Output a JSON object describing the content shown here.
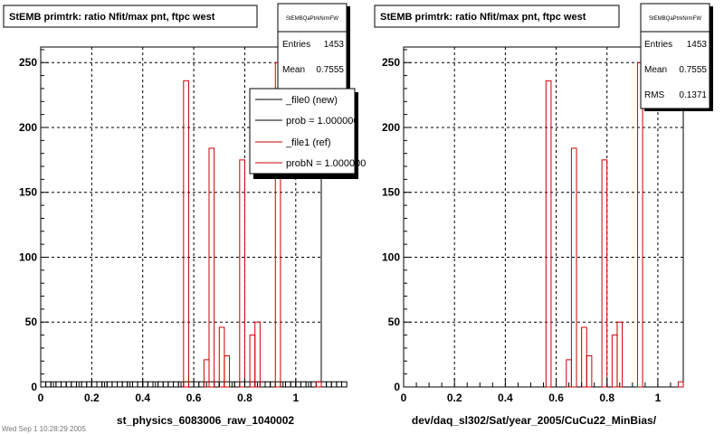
{
  "footer_text": "Wed Sep 1 10:28:29 2005",
  "colors": {
    "hist": "#cc0000",
    "grid": "#000000",
    "frame": "#000000",
    "shadow": "#000000"
  },
  "legend": {
    "entries": [
      {
        "label": "_file0 (new)",
        "color": "#000000"
      },
      {
        "label": "prob = 1.000000",
        "color": "#000000"
      },
      {
        "label": "_file1 (ref)",
        "color": "#cc0000"
      },
      {
        "label": "probN = 1.000000",
        "color": "#cc0000"
      }
    ]
  },
  "chart_data": [
    {
      "type": "bar",
      "title": "StEMB primtrk: ratio Nfit/max pnt, ftpc west",
      "xlabel": "st_physics_6083006_raw_1040002",
      "ylabel": "",
      "xlim": [
        0,
        1.1
      ],
      "ylim": [
        0,
        262
      ],
      "xticks": [
        "0",
        "0.2",
        "0.4",
        "0.6",
        "0.8",
        "1"
      ],
      "yticks": [
        "0",
        "50",
        "100",
        "150",
        "200",
        "250"
      ],
      "grid": true,
      "stats": {
        "name": "StEMBQaPtrkNrmFW",
        "rows": [
          {
            "label": "Entries",
            "value": "1453"
          },
          {
            "label": "Mean",
            "value": "0.7555"
          }
        ]
      },
      "bins": {
        "x0": 0.0,
        "width": 0.02
      },
      "series": [
        {
          "values": [
            4,
            4,
            4,
            4,
            4,
            4,
            4,
            4,
            4,
            4,
            4,
            4,
            4,
            4,
            4,
            4,
            4,
            4,
            4,
            4,
            4,
            4,
            4,
            4,
            4,
            4,
            4,
            4,
            4,
            4,
            4,
            4,
            4,
            4,
            4,
            4,
            4,
            4,
            4,
            4,
            4,
            4,
            4,
            4,
            4,
            4,
            4,
            4,
            4,
            4,
            4,
            4,
            4,
            4,
            4,
            4,
            4,
            4,
            4,
            4
          ]
        },
        {
          "values": [
            0,
            0,
            0,
            0,
            0,
            0,
            0,
            0,
            0,
            0,
            0,
            0,
            0,
            0,
            0,
            0,
            0,
            0,
            0,
            0,
            0,
            0,
            0,
            0,
            0,
            0,
            0,
            0,
            236,
            0,
            0,
            0,
            21,
            184,
            0,
            46,
            24,
            0,
            0,
            175,
            0,
            40,
            50,
            0,
            0,
            0,
            250,
            0,
            0,
            0,
            0,
            0,
            0,
            0,
            4,
            0,
            0,
            0,
            0,
            0
          ]
        }
      ]
    },
    {
      "type": "bar",
      "title": "StEMB primtrk: ratio Nfit/max pnt, ftpc west",
      "xlabel": "dev/daq_sl302/Sat/year_2005/CuCu22_MinBias/",
      "ylabel": "",
      "xlim": [
        0,
        1.1
      ],
      "ylim": [
        0,
        262
      ],
      "xticks": [
        "0",
        "0.2",
        "0.4",
        "0.6",
        "0.8",
        "1"
      ],
      "yticks": [
        "0",
        "50",
        "100",
        "150",
        "200",
        "250"
      ],
      "grid": true,
      "stats": {
        "name": "StEMBQaPtrkNrmFW",
        "rows": [
          {
            "label": "Entries",
            "value": "1453"
          },
          {
            "label": "Mean",
            "value": "0.7555"
          },
          {
            "label": "RMS",
            "value": "0.1371"
          }
        ]
      },
      "bins": {
        "x0": 0.0,
        "width": 0.02
      },
      "series": [
        {
          "values": [
            0,
            0,
            0,
            0,
            0,
            0,
            0,
            0,
            0,
            0,
            0,
            0,
            0,
            0,
            0,
            0,
            0,
            0,
            0,
            0,
            0,
            0,
            0,
            0,
            0,
            0,
            0,
            0,
            236,
            0,
            0,
            0,
            21,
            184,
            0,
            46,
            24,
            0,
            0,
            175,
            0,
            40,
            50,
            0,
            0,
            0,
            250,
            0,
            0,
            0,
            0,
            0,
            0,
            0,
            4,
            0,
            0,
            0,
            0,
            0
          ]
        }
      ]
    }
  ]
}
